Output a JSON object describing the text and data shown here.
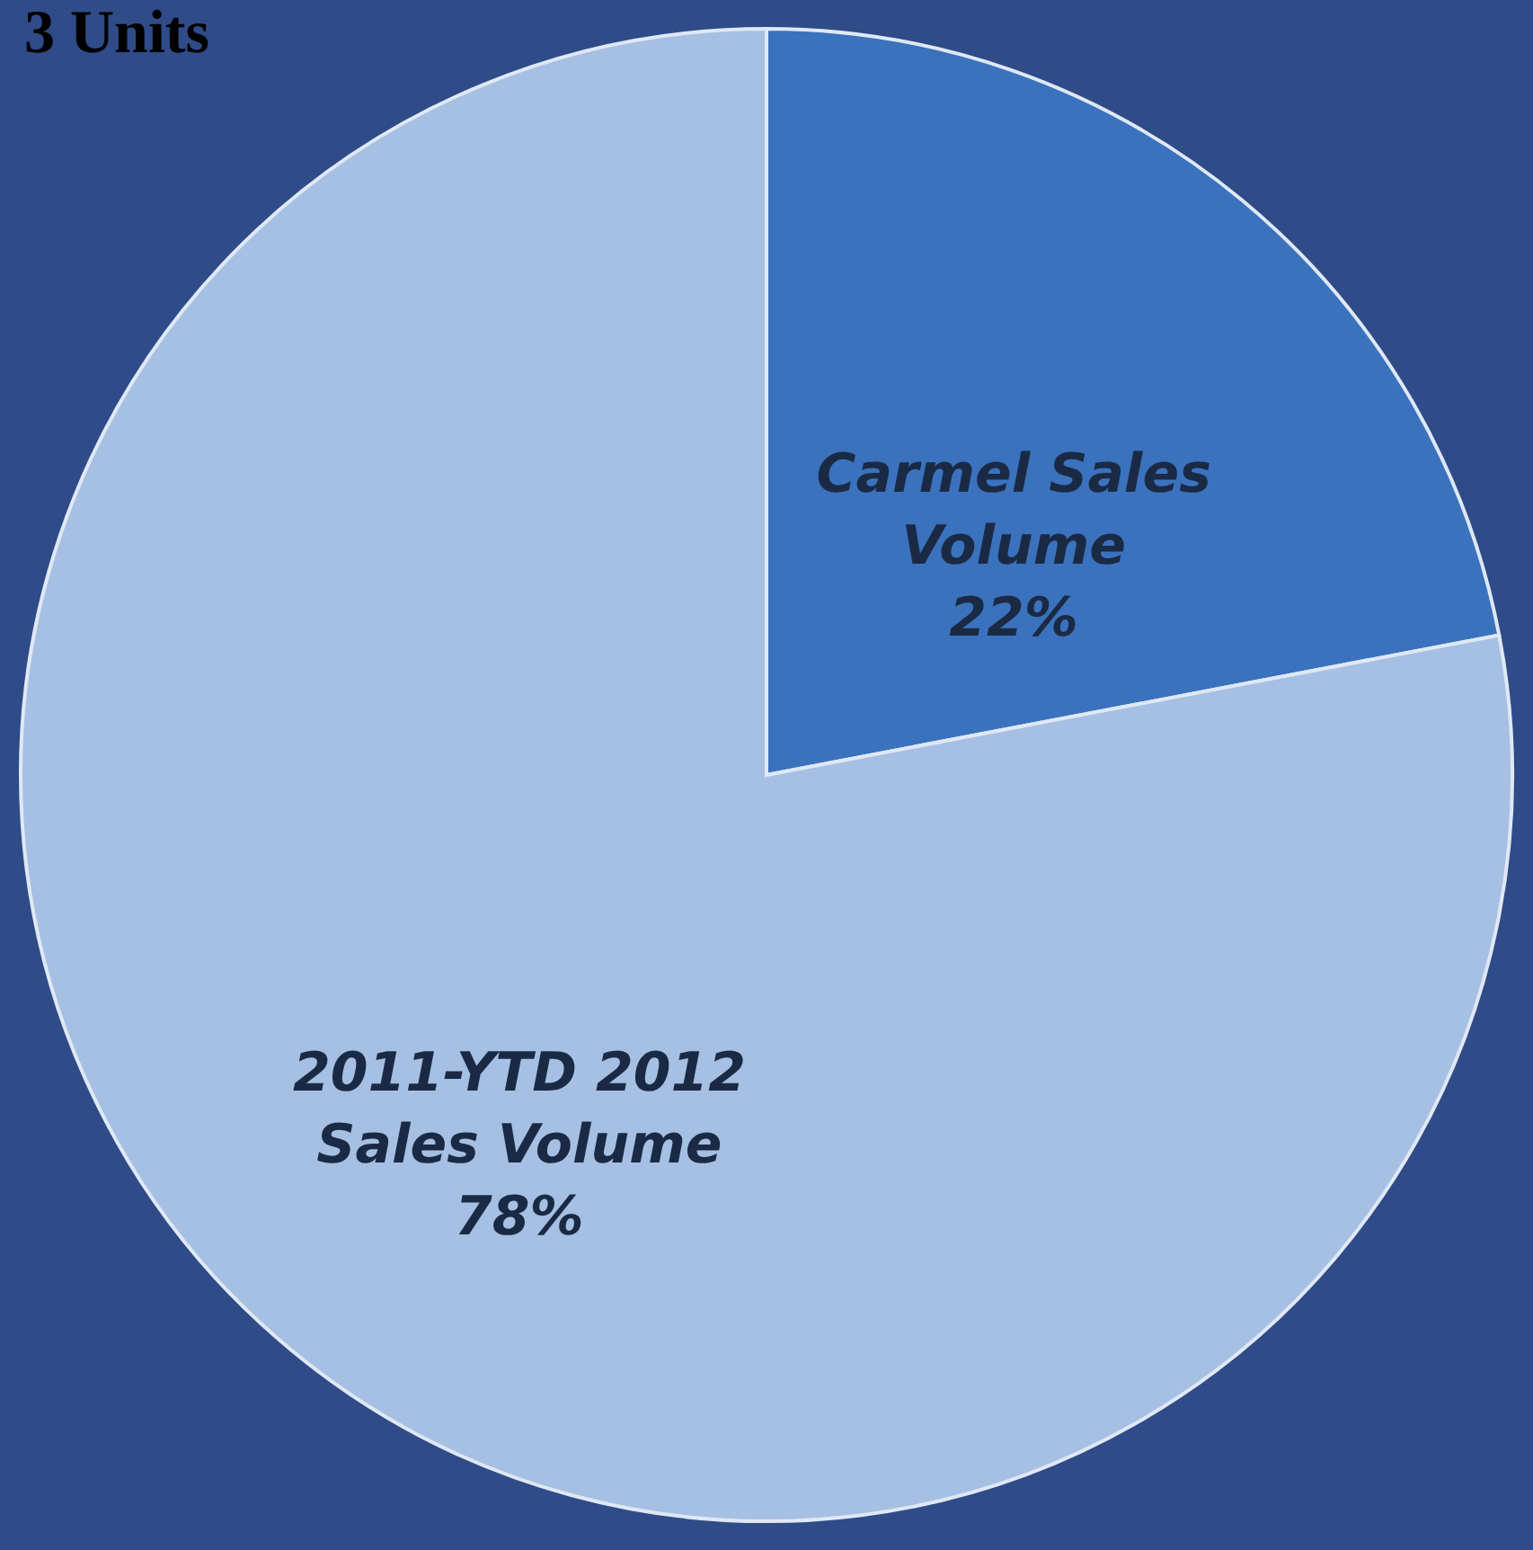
{
  "chart_data": {
    "type": "pie",
    "categories": [
      "Carmel Sales Volume",
      "2011-YTD 2012 Sales Volume"
    ],
    "values": [
      22,
      78
    ],
    "colors": [
      "#3b72bd",
      "#a6c0e3"
    ],
    "value_labels": [
      "22%",
      "78%"
    ],
    "annotations": [
      "3 Units"
    ]
  }
}
